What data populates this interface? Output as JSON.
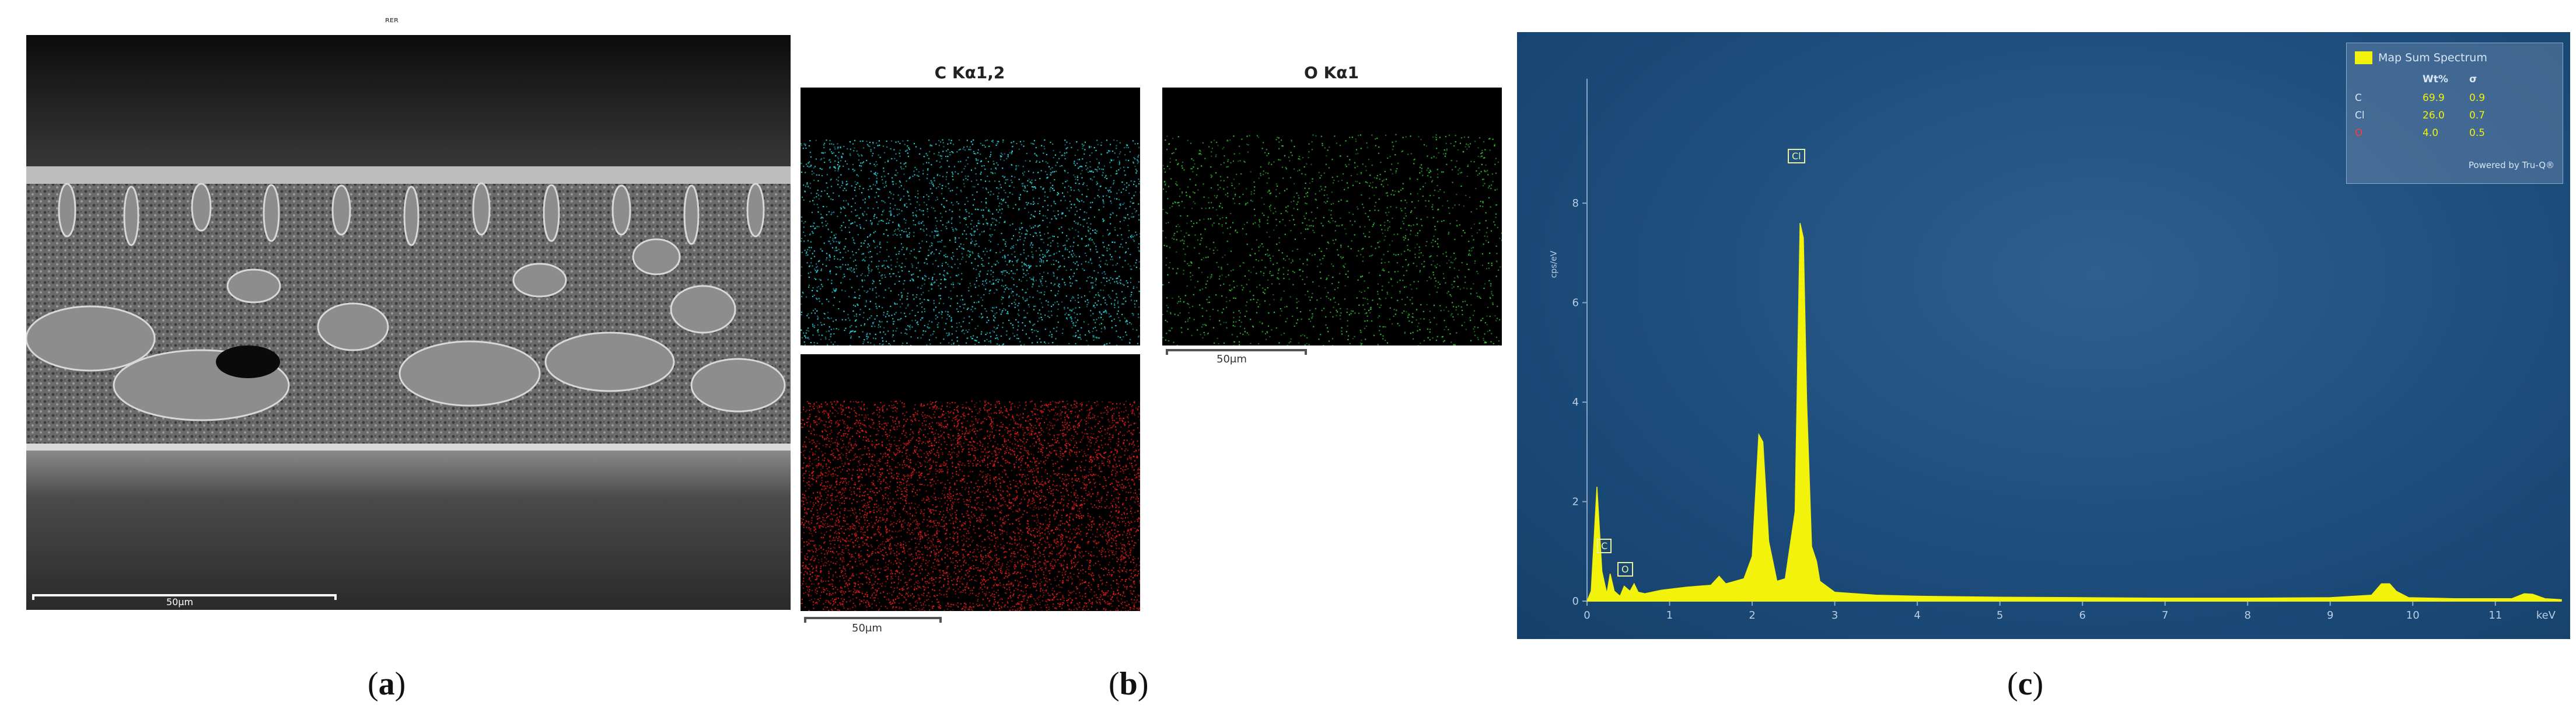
{
  "panel_a": {
    "top_label": "ᴿᴱᴿ",
    "scalebar_label": "50μm",
    "caption_letter": "a"
  },
  "panel_b": {
    "maps": [
      {
        "title": "C Kα1,2",
        "color": "#2ad6e0"
      },
      {
        "title": "O Kα1",
        "color": "#33c23a"
      },
      {
        "title": "",
        "color": "#e11b1b"
      }
    ],
    "scalebar_labels": [
      "50μm",
      "50μm"
    ],
    "caption_letter": "b"
  },
  "panel_c": {
    "legend": {
      "title": "Map Sum Spectrum",
      "headers": [
        "Wt%",
        "σ"
      ],
      "rows": [
        {
          "element": "C",
          "wt": "69.9",
          "sigma": "0.9"
        },
        {
          "element": "Cl",
          "wt": "26.0",
          "sigma": "0.7"
        },
        {
          "element": "O",
          "wt": "4.0",
          "sigma": "0.5"
        }
      ],
      "footer": "Powered by Tru-Q®"
    },
    "y_axis_label": "cps/eV",
    "x_unit": "keV",
    "peak_tags": [
      "C",
      "O",
      "Cl"
    ],
    "caption_letter": "c"
  },
  "chart_data": {
    "type": "area",
    "title": "Map Sum Spectrum",
    "xlabel": "keV",
    "ylabel": "cps/eV",
    "xlim": [
      0,
      11.8
    ],
    "ylim": [
      0,
      10.5
    ],
    "x_ticks": [
      0,
      1,
      2,
      3,
      4,
      5,
      6,
      7,
      8,
      9,
      10,
      11
    ],
    "y_ticks": [
      0,
      2,
      4,
      6,
      8
    ],
    "series": [
      {
        "name": "Map Sum Spectrum",
        "color": "#f2f20a",
        "x": [
          0,
          0.05,
          0.12,
          0.18,
          0.24,
          0.28,
          0.33,
          0.4,
          0.45,
          0.52,
          0.57,
          0.62,
          0.7,
          0.9,
          1.2,
          1.5,
          1.6,
          1.68,
          1.75,
          1.9,
          2.0,
          2.08,
          2.13,
          2.2,
          2.3,
          2.4,
          2.52,
          2.58,
          2.62,
          2.66,
          2.72,
          2.78,
          2.82,
          2.9,
          3.0,
          3.5,
          4.0,
          5.0,
          6.0,
          7.0,
          8.0,
          9.0,
          9.5,
          9.62,
          9.72,
          9.8,
          9.95,
          10.5,
          11.2,
          11.35,
          11.45,
          11.6,
          11.8
        ],
        "values": [
          0,
          0.2,
          2.3,
          0.6,
          0.15,
          0.55,
          0.2,
          0.1,
          0.3,
          0.2,
          0.35,
          0.18,
          0.15,
          0.22,
          0.28,
          0.32,
          0.5,
          0.35,
          0.38,
          0.45,
          0.9,
          3.35,
          3.2,
          1.2,
          0.4,
          0.45,
          1.8,
          7.6,
          7.3,
          4.0,
          1.1,
          0.8,
          0.4,
          0.3,
          0.18,
          0.12,
          0.1,
          0.08,
          0.07,
          0.06,
          0.06,
          0.07,
          0.12,
          0.35,
          0.35,
          0.2,
          0.07,
          0.05,
          0.05,
          0.15,
          0.14,
          0.05,
          0.03
        ]
      }
    ]
  }
}
